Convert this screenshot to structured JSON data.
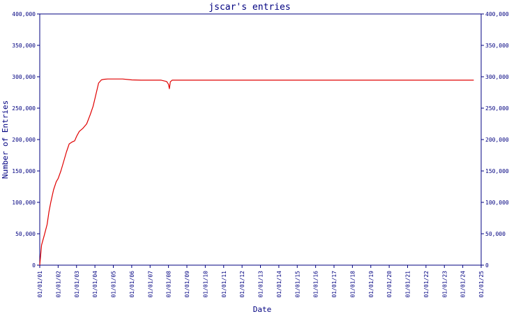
{
  "chart_data": {
    "type": "line",
    "title": "jscar's entries",
    "xlabel": "Date",
    "ylabel": "Number of Entries",
    "ylim": [
      0,
      400000
    ],
    "y_ticks": [
      0,
      50000,
      100000,
      150000,
      200000,
      250000,
      300000,
      350000,
      400000
    ],
    "y_tick_labels": [
      "0",
      "50,000",
      "100,000",
      "150,000",
      "200,000",
      "250,000",
      "300,000",
      "350,000",
      "400,000"
    ],
    "x_tick_labels": [
      "01/01/01",
      "01/01/02",
      "01/01/03",
      "01/01/04",
      "01/01/05",
      "01/01/06",
      "01/01/07",
      "01/01/08",
      "01/01/09",
      "01/01/10",
      "01/01/11",
      "01/01/12",
      "01/01/13",
      "01/01/14",
      "01/01/15",
      "01/01/16",
      "01/01/17",
      "01/01/18",
      "01/01/19",
      "01/01/20",
      "01/01/21",
      "01/01/22",
      "01/01/23",
      "01/01/24",
      "01/01/25"
    ],
    "grid": false,
    "colors": {
      "line": "#e00000",
      "axis": "#000080"
    },
    "series": [
      {
        "x": [
          2001.0,
          2001.1,
          2001.25,
          2001.4,
          2001.5,
          2001.6,
          2001.75,
          2001.9,
          2002.0,
          2002.15,
          2002.3,
          2002.45,
          2002.6,
          2002.75,
          2002.9,
          2003.0,
          2003.15,
          2003.35,
          2003.55,
          2003.75,
          2003.9,
          2004.0,
          2004.2,
          2004.35,
          2004.5,
          2004.7,
          2005.0,
          2005.5,
          2006.0,
          2006.5,
          2007.0,
          2007.6,
          2007.9,
          2008.0,
          2008.05,
          2008.1,
          2008.2,
          2009.0,
          2012.0,
          2016.0,
          2020.0,
          2024.0,
          2024.6
        ],
        "y": [
          0,
          32000,
          48000,
          65000,
          85000,
          100000,
          120000,
          133000,
          138000,
          150000,
          165000,
          180000,
          193000,
          196000,
          198000,
          205000,
          213000,
          218000,
          225000,
          240000,
          253000,
          265000,
          290000,
          295000,
          296000,
          296500,
          296500,
          296500,
          295000,
          294500,
          294500,
          294500,
          292500,
          288000,
          281000,
          292000,
          294500,
          294500,
          294500,
          294500,
          294500,
          294500,
          294500
        ]
      }
    ]
  }
}
